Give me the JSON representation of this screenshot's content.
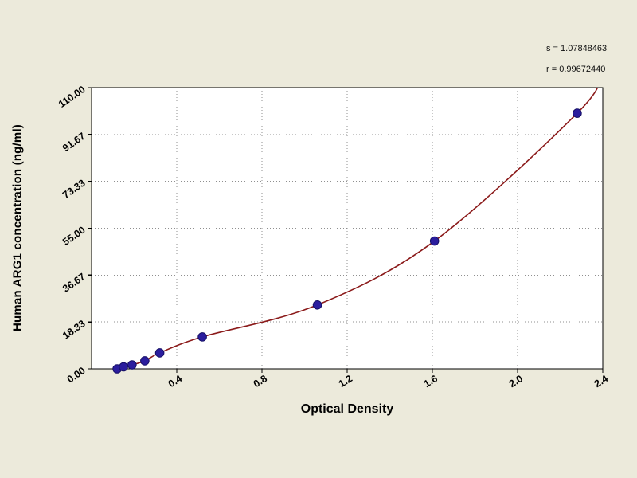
{
  "annotations": {
    "s_line": "s = 1.07848463",
    "r_line": "r = 0.99672440"
  },
  "chart_data": {
    "type": "scatter",
    "title": "",
    "xlabel": "Optical Density",
    "ylabel": "Human ARG1 concentration (ng/ml)",
    "xlim": [
      0,
      2.4
    ],
    "ylim": [
      0,
      110
    ],
    "grid": true,
    "legend": "none",
    "x_ticks": [
      0.4,
      0.8,
      1.2,
      1.6,
      2.0,
      2.4
    ],
    "x_tick_labels": [
      "0.4",
      "0.8",
      "1.2",
      "1.6",
      "2.0",
      "2.4"
    ],
    "y_ticks": [
      0,
      18.33,
      36.67,
      55,
      73.33,
      91.67,
      110
    ],
    "y_tick_labels": [
      "0.00",
      "18.33",
      "36.67",
      "55.00",
      "73.33",
      "91.67",
      "110.00"
    ],
    "series": [
      {
        "name": "standard-points",
        "type": "scatter",
        "x": [
          0.12,
          0.15,
          0.19,
          0.25,
          0.32,
          0.52,
          1.06,
          1.61,
          2.28
        ],
        "y": [
          0,
          0.78,
          1.56,
          3.13,
          6.25,
          12.5,
          25,
          50,
          100
        ]
      },
      {
        "name": "fit-curve",
        "type": "line",
        "x": [
          0.1,
          0.12,
          0.15,
          0.19,
          0.25,
          0.32,
          0.52,
          1.06,
          1.61,
          2.28,
          2.4
        ],
        "y": [
          -1.0,
          0,
          0.78,
          1.56,
          3.13,
          6.25,
          12.5,
          25,
          50,
          100,
          116
        ]
      }
    ],
    "colors": {
      "background": "#eceadb",
      "plot_bg": "#ffffff",
      "grid": "#8f8f8f",
      "axis": "#000000",
      "point_fill": "#2b1d9e",
      "point_stroke": "#161066",
      "curve": "#8b1a1a",
      "text": "#000000"
    }
  }
}
